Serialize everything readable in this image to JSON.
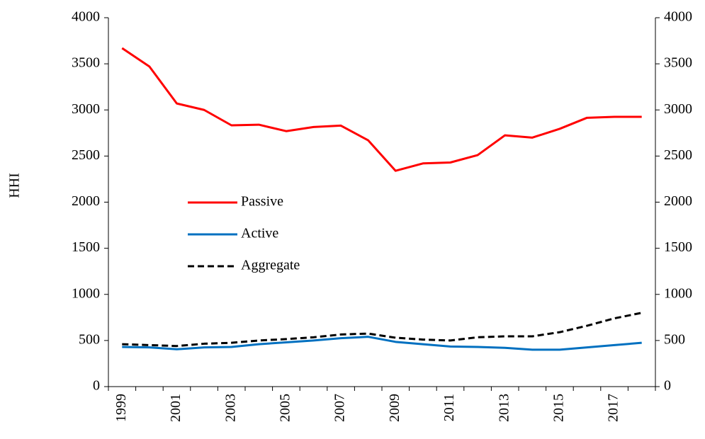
{
  "chart_data": {
    "type": "line",
    "y_label": "HHI",
    "categories": [
      "1999",
      null,
      "2001",
      null,
      "2003",
      null,
      "2005",
      null,
      "2007",
      null,
      "2009",
      null,
      "2011",
      null,
      "2013",
      null,
      "2015",
      null,
      "2017",
      null
    ],
    "series": [
      {
        "name": "Passive",
        "color": "#ff0000",
        "dash": false,
        "values": [
          3670,
          3470,
          3070,
          3000,
          2833,
          2840,
          2770,
          2815,
          2830,
          2670,
          2340,
          2420,
          2430,
          2510,
          2725,
          2700,
          2795,
          2915,
          2925,
          2925
        ]
      },
      {
        "name": "Active",
        "color": "#0070c0",
        "dash": false,
        "values": [
          430,
          425,
          405,
          425,
          430,
          460,
          480,
          500,
          525,
          540,
          485,
          460,
          435,
          430,
          420,
          400,
          400,
          425,
          450,
          475
        ]
      },
      {
        "name": "Aggregate",
        "color": "#000000",
        "dash": true,
        "values": [
          460,
          450,
          440,
          465,
          475,
          500,
          515,
          535,
          565,
          575,
          530,
          510,
          500,
          535,
          545,
          545,
          590,
          660,
          740,
          800
        ]
      }
    ],
    "ylim": [
      0,
      4000
    ],
    "yticks": [
      0,
      500,
      1000,
      1500,
      2000,
      2500,
      3000,
      3500,
      4000
    ],
    "y2lim": [
      0,
      4000
    ],
    "y2ticks": [
      0,
      500,
      1000,
      1500,
      2000,
      2500,
      3000,
      3500,
      4000
    ],
    "grid": false,
    "legend": "center-left"
  }
}
